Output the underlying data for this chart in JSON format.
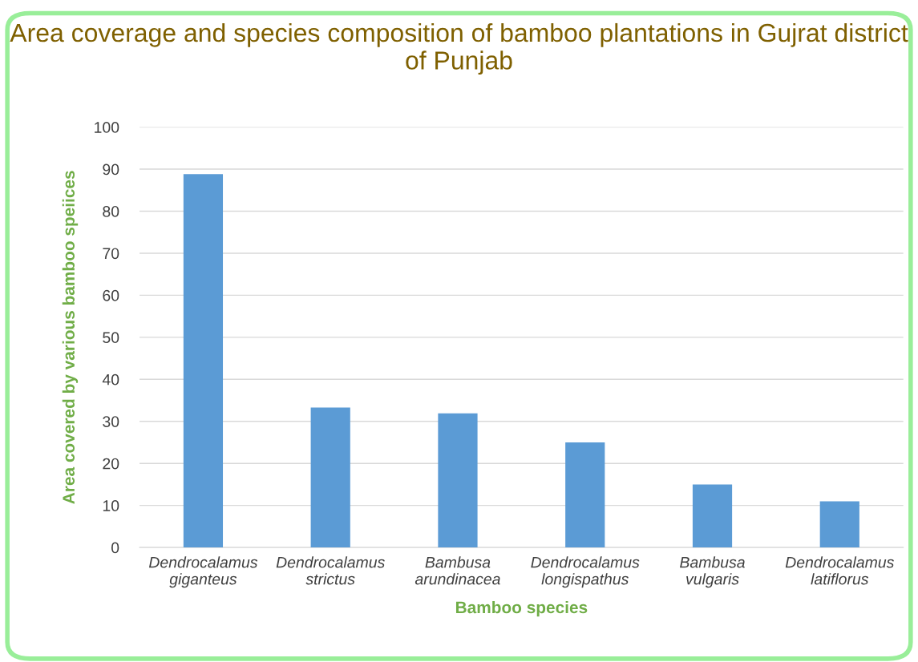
{
  "chart_data": {
    "type": "bar",
    "title": "Area coverage and species composition of bamboo plantations in Gujrat district of Punjab",
    "xlabel": "Bamboo species",
    "ylabel": "Area covered by various bamboo speiices",
    "categories": [
      "Dendrocalamus giganteus",
      "Dendrocalamus strictus",
      "Bambusa arundinacea",
      "Dendrocalamus longispathus",
      "Bambusa vulgaris",
      "Dendrocalamus latiflorus"
    ],
    "values": [
      88.8,
      33.3,
      31.9,
      25,
      15,
      11
    ],
    "color": "#5b9bd5",
    "ylim": [
      0,
      100
    ],
    "yticks": [
      0,
      10,
      20,
      30,
      40,
      50,
      60,
      70,
      80,
      90,
      100
    ],
    "grid": "y"
  }
}
